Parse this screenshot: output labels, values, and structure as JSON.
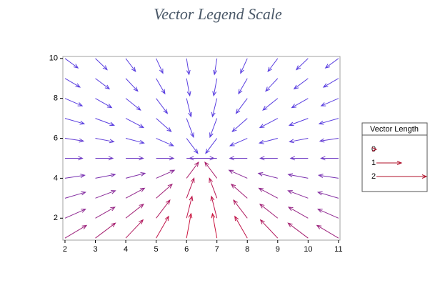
{
  "chart_data": {
    "type": "vector",
    "title": "Vector Legend Scale",
    "xlim": [
      1.93,
      11.05
    ],
    "ylim": [
      0.9,
      10.1
    ],
    "xticks": [
      2,
      3,
      4,
      5,
      6,
      7,
      8,
      9,
      10,
      11
    ],
    "yticks": [
      2,
      4,
      6,
      8,
      10
    ],
    "color_low": "#5a3fe0",
    "color_high": "#cc1038",
    "legend": {
      "title": "Vector Length",
      "values": [
        0,
        1,
        2
      ],
      "color": "#b0102a"
    },
    "x": [
      2,
      3,
      4,
      5,
      6,
      7,
      8,
      9,
      10,
      11,
      2,
      3,
      4,
      5,
      6,
      7,
      8,
      9,
      10,
      11,
      2,
      3,
      4,
      5,
      6,
      7,
      8,
      9,
      10,
      11,
      2,
      3,
      4,
      5,
      6,
      7,
      8,
      9,
      10,
      11,
      2,
      3,
      4,
      5,
      6,
      7,
      8,
      9,
      10,
      11,
      2,
      3,
      4,
      5,
      6,
      7,
      8,
      9,
      10,
      11,
      2,
      3,
      4,
      5,
      6,
      7,
      8,
      9,
      10,
      11,
      2,
      3,
      4,
      5,
      6,
      7,
      8,
      9,
      10,
      11,
      2,
      3,
      4,
      5,
      6,
      7,
      8,
      9,
      10,
      11,
      2,
      3,
      4,
      5,
      6,
      7,
      8,
      9,
      10,
      11
    ],
    "y": [
      1,
      1,
      1,
      1,
      1,
      1,
      1,
      1,
      1,
      1,
      2,
      2,
      2,
      2,
      2,
      2,
      2,
      2,
      2,
      2,
      3,
      3,
      3,
      3,
      3,
      3,
      3,
      3,
      3,
      3,
      4,
      4,
      4,
      4,
      4,
      4,
      4,
      4,
      4,
      4,
      5,
      5,
      5,
      5,
      5,
      5,
      5,
      5,
      5,
      5,
      6,
      6,
      6,
      6,
      6,
      6,
      6,
      6,
      6,
      6,
      7,
      7,
      7,
      7,
      7,
      7,
      7,
      7,
      7,
      7,
      8,
      8,
      8,
      8,
      8,
      8,
      8,
      8,
      8,
      8,
      9,
      9,
      9,
      9,
      9,
      9,
      9,
      9,
      9,
      9,
      10,
      10,
      10,
      10,
      10,
      10,
      10,
      10,
      10,
      10
    ],
    "u": [
      0.86,
      0.8,
      0.69,
      0.5,
      0.18,
      -0.18,
      -0.5,
      -0.69,
      -0.8,
      -0.86,
      0.82,
      0.78,
      0.71,
      0.55,
      0.22,
      -0.22,
      -0.55,
      -0.71,
      -0.78,
      -0.82,
      0.82,
      0.8,
      0.75,
      0.64,
      0.3,
      -0.3,
      -0.64,
      -0.75,
      -0.8,
      -0.82,
      0.79,
      0.79,
      0.77,
      0.73,
      0.48,
      -0.48,
      -0.73,
      -0.77,
      -0.79,
      -0.79,
      0.7,
      0.7,
      0.7,
      0.7,
      1.1,
      -1.1,
      -0.7,
      -0.7,
      -0.7,
      -0.7,
      0.74,
      0.74,
      0.73,
      0.69,
      0.45,
      -0.45,
      -0.69,
      -0.73,
      -0.74,
      -0.74,
      0.77,
      0.75,
      0.71,
      0.6,
      0.28,
      -0.28,
      -0.6,
      -0.71,
      -0.75,
      -0.77,
      0.69,
      0.65,
      0.59,
      0.45,
      0.18,
      -0.18,
      -0.45,
      -0.59,
      -0.65,
      -0.69,
      0.6,
      0.56,
      0.48,
      0.35,
      0.13,
      -0.13,
      -0.35,
      -0.48,
      -0.56,
      -0.6,
      0.52,
      0.47,
      0.39,
      0.27,
      0.1,
      -0.1,
      -0.27,
      -0.39,
      -0.47,
      -0.52
    ],
    "v": [
      0.51,
      0.6,
      0.73,
      0.87,
      0.98,
      0.98,
      0.87,
      0.73,
      0.6,
      0.51,
      0.36,
      0.44,
      0.56,
      0.72,
      0.87,
      0.87,
      0.72,
      0.56,
      0.44,
      0.36,
      0.24,
      0.3,
      0.4,
      0.56,
      0.8,
      0.8,
      0.56,
      0.4,
      0.3,
      0.24,
      0.12,
      0.15,
      0.2,
      0.32,
      0.64,
      0.64,
      0.32,
      0.2,
      0.15,
      0.12,
      0,
      0,
      0,
      0,
      0,
      0,
      0,
      0,
      0,
      0,
      -0.11,
      -0.14,
      -0.19,
      -0.3,
      -0.6,
      -0.6,
      -0.3,
      -0.19,
      -0.14,
      -0.11,
      -0.22,
      -0.28,
      -0.37,
      -0.53,
      -0.75,
      -0.75,
      -0.53,
      -0.37,
      -0.28,
      -0.22,
      -0.3,
      -0.37,
      -0.47,
      -0.6,
      -0.73,
      -0.73,
      -0.6,
      -0.47,
      -0.37,
      -0.3,
      -0.35,
      -0.42,
      -0.51,
      -0.61,
      -0.69,
      -0.69,
      -0.61,
      -0.51,
      -0.42,
      -0.35,
      -0.38,
      -0.45,
      -0.52,
      -0.59,
      -0.64,
      -0.64,
      -0.59,
      -0.52,
      -0.45,
      -0.38
    ]
  }
}
